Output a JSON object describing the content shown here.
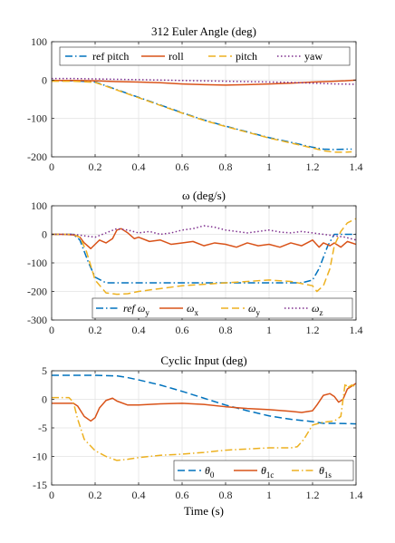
{
  "chart_data": [
    {
      "type": "line",
      "title": "312 Euler Angle (deg)",
      "xlabel": "",
      "ylabel": "",
      "xlim": [
        0,
        1.4
      ],
      "ylim": [
        -200,
        100
      ],
      "xticks": [
        0,
        0.2,
        0.4,
        0.6,
        0.8,
        1,
        1.2,
        1.4
      ],
      "xtick_labels": [
        "0",
        "0.2",
        "0.4",
        "0.6",
        "0.8",
        "1",
        "1.2",
        "1.4"
      ],
      "yticks": [
        -200,
        -100,
        0,
        100
      ],
      "ytick_labels": [
        "-200",
        "-100",
        "0",
        "100"
      ],
      "grid": true,
      "legend_position": "top",
      "series": [
        {
          "name": "ref pitch",
          "color": "#0072BD",
          "dash": "dashdot",
          "x": [
            0,
            0.1,
            0.2,
            0.3,
            0.4,
            0.5,
            0.6,
            0.7,
            0.8,
            0.9,
            1.0,
            1.1,
            1.2,
            1.25,
            1.3,
            1.35,
            1.38
          ],
          "y": [
            -2,
            -2,
            -5,
            -25,
            -45,
            -65,
            -85,
            -104,
            -120,
            -135,
            -150,
            -162,
            -175,
            -180,
            -181,
            -180,
            -180
          ]
        },
        {
          "name": "roll",
          "color": "#D95319",
          "dash": "solid",
          "x": [
            0,
            0.1,
            0.2,
            0.3,
            0.4,
            0.5,
            0.6,
            0.7,
            0.8,
            0.9,
            1.0,
            1.1,
            1.2,
            1.3,
            1.35,
            1.4
          ],
          "y": [
            -1,
            -1,
            -2,
            -4,
            -5,
            -7,
            -10,
            -12,
            -13,
            -12,
            -10,
            -8,
            -5,
            -3,
            -2,
            0
          ]
        },
        {
          "name": "pitch",
          "color": "#EDB120",
          "dash": "dashed",
          "x": [
            0,
            0.1,
            0.2,
            0.3,
            0.4,
            0.5,
            0.6,
            0.7,
            0.8,
            0.9,
            1.0,
            1.1,
            1.2,
            1.25,
            1.3,
            1.35,
            1.38
          ],
          "y": [
            -3,
            -3,
            -6,
            -26,
            -46,
            -66,
            -86,
            -105,
            -121,
            -136,
            -151,
            -164,
            -177,
            -184,
            -188,
            -188,
            -187
          ]
        },
        {
          "name": "yaw",
          "color": "#7E2F8E",
          "dash": "dotted",
          "x": [
            0,
            0.1,
            0.2,
            0.3,
            0.4,
            0.5,
            0.6,
            0.7,
            0.8,
            0.9,
            1.0,
            1.1,
            1.2,
            1.3,
            1.4
          ],
          "y": [
            4,
            4,
            3,
            2,
            1,
            0,
            -1,
            -2,
            -3,
            -4,
            -5,
            -6,
            -8,
            -10,
            -11
          ]
        }
      ]
    },
    {
      "type": "line",
      "title": "ω (deg/s)",
      "xlabel": "",
      "ylabel": "",
      "xlim": [
        0,
        1.4
      ],
      "ylim": [
        -300,
        100
      ],
      "xticks": [
        0,
        0.2,
        0.4,
        0.6,
        0.8,
        1,
        1.2,
        1.4
      ],
      "xtick_labels": [
        "0",
        "0.2",
        "0.4",
        "0.6",
        "0.8",
        "1",
        "1.2",
        "1.4"
      ],
      "yticks": [
        -300,
        -200,
        -100,
        0,
        100
      ],
      "ytick_labels": [
        "-300",
        "-200",
        "-100",
        "0",
        "100"
      ],
      "grid": true,
      "legend_position": "bottom",
      "series": [
        {
          "name": "ref ω",
          "sub": "y",
          "color": "#0072BD",
          "dash": "dashdot",
          "x": [
            0,
            0.1,
            0.13,
            0.17,
            0.2,
            0.25,
            0.3,
            0.5,
            0.8,
            1.0,
            1.15,
            1.2,
            1.23,
            1.27,
            1.3,
            1.4
          ],
          "y": [
            0,
            0,
            -20,
            -100,
            -150,
            -170,
            -170,
            -170,
            -170,
            -170,
            -170,
            -160,
            -120,
            -40,
            0,
            0
          ]
        },
        {
          "name": "ω",
          "sub": "x",
          "color": "#D95319",
          "dash": "solid",
          "x": [
            0,
            0.05,
            0.1,
            0.13,
            0.15,
            0.18,
            0.2,
            0.22,
            0.25,
            0.28,
            0.3,
            0.32,
            0.35,
            0.38,
            0.4,
            0.45,
            0.5,
            0.55,
            0.6,
            0.65,
            0.7,
            0.75,
            0.8,
            0.85,
            0.9,
            0.95,
            1.0,
            1.05,
            1.1,
            1.15,
            1.2,
            1.23,
            1.25,
            1.28,
            1.3,
            1.33,
            1.36,
            1.4
          ],
          "y": [
            0,
            0,
            -2,
            -10,
            -30,
            -50,
            -35,
            -20,
            -30,
            -15,
            15,
            20,
            5,
            -15,
            -10,
            -25,
            -20,
            -35,
            -30,
            -25,
            -40,
            -30,
            -35,
            -45,
            -30,
            -40,
            -35,
            -45,
            -30,
            -40,
            -20,
            -45,
            -30,
            -40,
            -30,
            -45,
            -25,
            -35
          ]
        },
        {
          "name": "ω",
          "sub": "y",
          "color": "#EDB120",
          "dash": "dashed",
          "x": [
            0,
            0.1,
            0.13,
            0.16,
            0.2,
            0.25,
            0.3,
            0.35,
            0.4,
            0.5,
            0.6,
            0.7,
            0.8,
            0.9,
            1.0,
            1.1,
            1.2,
            1.22,
            1.25,
            1.28,
            1.3,
            1.33,
            1.36,
            1.4
          ],
          "y": [
            0,
            0,
            -10,
            -60,
            -160,
            -205,
            -210,
            -208,
            -200,
            -190,
            -180,
            -175,
            -170,
            -165,
            -160,
            -165,
            -180,
            -200,
            -180,
            -120,
            -40,
            10,
            40,
            55
          ]
        },
        {
          "name": "ω",
          "sub": "z",
          "color": "#7E2F8E",
          "dash": "dotted",
          "x": [
            0,
            0.1,
            0.15,
            0.2,
            0.25,
            0.3,
            0.35,
            0.4,
            0.45,
            0.5,
            0.55,
            0.6,
            0.65,
            0.7,
            0.75,
            0.8,
            0.85,
            0.9,
            0.95,
            1.0,
            1.05,
            1.1,
            1.15,
            1.2,
            1.25,
            1.3,
            1.35,
            1.4
          ],
          "y": [
            0,
            0,
            -5,
            -10,
            5,
            20,
            15,
            5,
            10,
            0,
            5,
            15,
            20,
            30,
            25,
            15,
            10,
            5,
            10,
            15,
            8,
            5,
            10,
            5,
            0,
            -5,
            -10,
            -20
          ]
        }
      ]
    },
    {
      "type": "line",
      "title": "Cyclic Input (deg)",
      "xlabel": "Time (s)",
      "ylabel": "",
      "xlim": [
        0,
        1.4
      ],
      "ylim": [
        -15,
        5
      ],
      "xticks": [
        0,
        0.2,
        0.4,
        0.6,
        0.8,
        1,
        1.2,
        1.4
      ],
      "xtick_labels": [
        "0",
        "0.2",
        "0.4",
        "0.6",
        "0.8",
        "1",
        "1.2",
        "1.4"
      ],
      "yticks": [
        -15,
        -10,
        -5,
        0,
        5
      ],
      "ytick_labels": [
        "-15",
        "-10",
        "-5",
        "0",
        "5"
      ],
      "grid": true,
      "legend_position": "bottom",
      "series": [
        {
          "name": "θ",
          "sub": "0",
          "color": "#0072BD",
          "dash": "dashed",
          "x": [
            0,
            0.1,
            0.2,
            0.3,
            0.35,
            0.4,
            0.5,
            0.6,
            0.7,
            0.8,
            0.9,
            1.0,
            1.1,
            1.2,
            1.25,
            1.3,
            1.4
          ],
          "y": [
            4.2,
            4.2,
            4.2,
            4.1,
            3.8,
            3.4,
            2.5,
            1.4,
            0.2,
            -1.0,
            -2.0,
            -2.9,
            -3.5,
            -3.9,
            -4.2,
            -4.2,
            -4.3
          ]
        },
        {
          "name": "θ",
          "sub": "1c",
          "color": "#D95319",
          "dash": "solid",
          "x": [
            0,
            0.1,
            0.12,
            0.15,
            0.18,
            0.2,
            0.22,
            0.25,
            0.28,
            0.3,
            0.35,
            0.4,
            0.5,
            0.6,
            0.7,
            0.8,
            0.9,
            1.0,
            1.1,
            1.15,
            1.2,
            1.22,
            1.25,
            1.28,
            1.3,
            1.32,
            1.34,
            1.36,
            1.4
          ],
          "y": [
            -0.7,
            -0.7,
            -1.2,
            -3.0,
            -3.8,
            -3.2,
            -1.5,
            -0.2,
            0.2,
            -0.3,
            -1.0,
            -1.0,
            -0.8,
            -0.7,
            -0.9,
            -1.3,
            -1.6,
            -1.8,
            -2.1,
            -2.3,
            -2.0,
            -1.0,
            0.7,
            1.0,
            0.5,
            -0.5,
            0.0,
            1.8,
            2.8
          ]
        },
        {
          "name": "θ",
          "sub": "1s",
          "color": "#EDB120",
          "dash": "dashdot",
          "x": [
            0,
            0.08,
            0.1,
            0.12,
            0.15,
            0.2,
            0.25,
            0.3,
            0.35,
            0.4,
            0.5,
            0.6,
            0.7,
            0.8,
            0.9,
            1.0,
            1.1,
            1.13,
            1.16,
            1.2,
            1.25,
            1.3,
            1.33,
            1.35,
            1.36,
            1.38,
            1.4
          ],
          "y": [
            0.3,
            0.3,
            -0.5,
            -3.5,
            -7.0,
            -9.0,
            -10.0,
            -10.7,
            -10.5,
            -10.2,
            -9.8,
            -9.6,
            -9.3,
            -8.9,
            -8.7,
            -8.5,
            -8.5,
            -8.3,
            -7.0,
            -4.5,
            -4.0,
            -3.8,
            -3.0,
            2.8,
            2.0,
            2.5,
            2.2
          ]
        }
      ]
    }
  ]
}
